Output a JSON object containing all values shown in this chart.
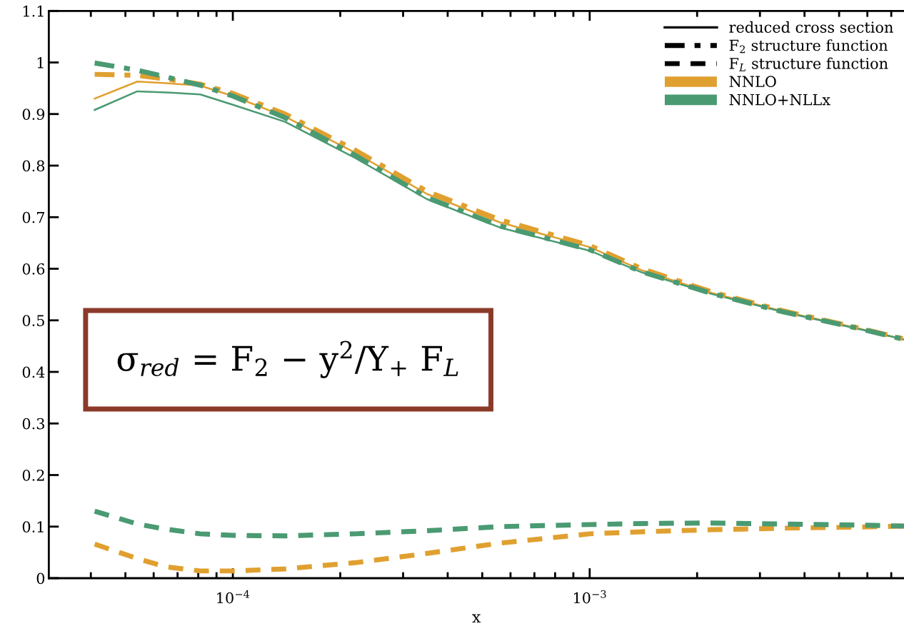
{
  "chart_data": {
    "type": "line",
    "xlabel": "x",
    "log": "x",
    "xlim": [
      3.05e-05,
      0.0076
    ],
    "xticks": [
      {
        "value": 0.0001,
        "label": "10$^{−4}$"
      },
      {
        "value": 0.001,
        "label": "10$^{−3}$"
      }
    ],
    "ylim": [
      0,
      1.1
    ],
    "yticks": [
      0,
      0.1,
      0.2,
      0.3,
      0.4,
      0.5,
      0.6,
      0.7,
      0.8,
      0.9,
      1,
      1.1
    ],
    "grid": false,
    "legend": "top right",
    "marker": "none",
    "x": [
      4.1e-05,
      5.4e-05,
      6.5e-05,
      8.1e-05,
      0.0001,
      0.00014,
      0.00022,
      0.00035,
      0.00056,
      0.001,
      0.0014,
      0.0022,
      0.0035,
      0.0056,
      0.0076
    ],
    "series": [
      {
        "name": "NNLO",
        "color": "#e0a030",
        "line_style": "solid",
        "values": [
          0.93,
          0.963,
          0.96,
          0.955,
          0.935,
          0.895,
          0.825,
          0.745,
          0.69,
          0.642,
          0.597,
          0.553,
          0.517,
          0.485,
          0.463
        ]
      },
      {
        "name": "NNLO+NLLx",
        "color": "#4a9a72",
        "line_style": "solid",
        "values": [
          0.908,
          0.944,
          0.942,
          0.938,
          0.918,
          0.885,
          0.815,
          0.735,
          0.68,
          0.635,
          0.593,
          0.551,
          0.516,
          0.484,
          0.463
        ]
      },
      {
        "color": "#e0a030",
        "line_style": "dashdot",
        "values": [
          0.977,
          0.975,
          0.968,
          0.958,
          0.94,
          0.9,
          0.83,
          0.75,
          0.695,
          0.645,
          0.6,
          0.555,
          0.518,
          0.486,
          0.464
        ]
      },
      {
        "color": "#4a9a72",
        "line_style": "dashdot",
        "values": [
          0.999,
          0.985,
          0.972,
          0.956,
          0.935,
          0.893,
          0.82,
          0.738,
          0.683,
          0.637,
          0.594,
          0.552,
          0.516,
          0.485,
          0.463
        ]
      },
      {
        "color": "#e0a030",
        "line_style": "dashed",
        "values": [
          0.066,
          0.038,
          0.022,
          0.014,
          0.014,
          0.018,
          0.03,
          0.048,
          0.068,
          0.086,
          0.09,
          0.094,
          0.097,
          0.099,
          0.101
        ]
      },
      {
        "color": "#4a9a72",
        "line_style": "dashed",
        "values": [
          0.13,
          0.105,
          0.095,
          0.086,
          0.083,
          0.082,
          0.086,
          0.092,
          0.1,
          0.104,
          0.106,
          0.107,
          0.105,
          0.103,
          0.101
        ]
      }
    ],
    "annotations": [
      "reduced cross section",
      "F$_{2}$ structure function",
      "F$_{L}$ structure function",
      "σ$_{red}$ = F$_{2}$ − y$^{2}$/Y$_{+}$ F$_{L}$"
    ]
  }
}
